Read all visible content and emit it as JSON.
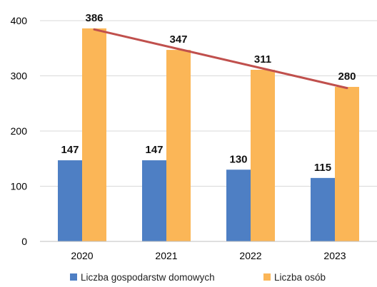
{
  "chart_data": {
    "type": "bar",
    "categories": [
      "2020",
      "2021",
      "2022",
      "2023"
    ],
    "series": [
      {
        "name": "Liczba gospodarstw domowych",
        "values": [
          147,
          147,
          130,
          115
        ],
        "color": "#4e7fc4"
      },
      {
        "name": "Liczba osób",
        "values": [
          386,
          347,
          311,
          280
        ],
        "color": "#fbb657"
      }
    ],
    "trendline": {
      "series": "Liczba osób",
      "color": "#c0504d"
    },
    "ylim": [
      0,
      400
    ],
    "yticks": [
      "0",
      "100",
      "200",
      "300",
      "400"
    ],
    "grid": true,
    "legend_position": "bottom",
    "title": "",
    "xlabel": "",
    "ylabel": ""
  }
}
